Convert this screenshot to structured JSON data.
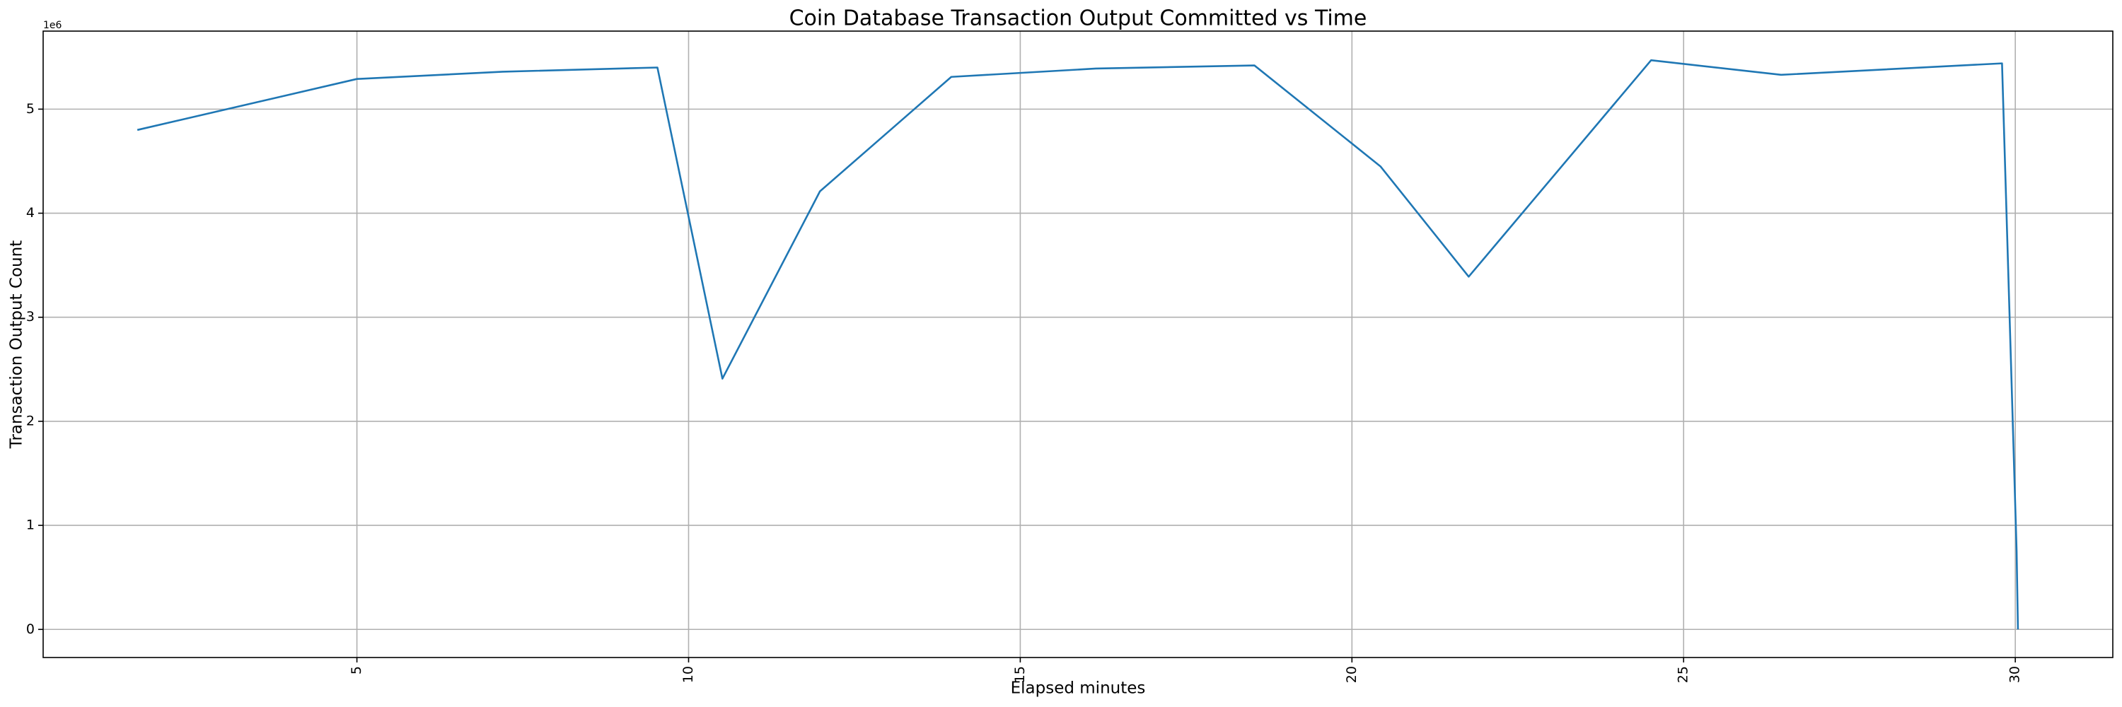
{
  "chart_data": {
    "type": "line",
    "title": "Coin Database Transaction Output Committed vs Time",
    "xlabel": "Elapsed minutes",
    "ylabel": "Transaction Output Count",
    "y_offset_label": "1e6",
    "x": [
      1.69,
      5.0,
      7.2,
      9.53,
      10.51,
      11.98,
      13.96,
      16.14,
      18.53,
      20.43,
      21.76,
      24.51,
      26.47,
      29.8,
      30.02,
      30.04
    ],
    "values": [
      4.8,
      5.29,
      5.36,
      5.4,
      2.41,
      4.21,
      5.31,
      5.39,
      5.42,
      4.45,
      3.39,
      5.47,
      5.33,
      5.44,
      0.75,
      0
    ],
    "color": "#1f77b4",
    "xlim": [
      0.27,
      31.47
    ],
    "xticks": [
      5,
      10,
      15,
      20,
      25,
      30
    ],
    "ylim": [
      -0.27,
      5.75
    ],
    "yticks": [
      0,
      1,
      2,
      3,
      4,
      5
    ],
    "grid": true
  }
}
